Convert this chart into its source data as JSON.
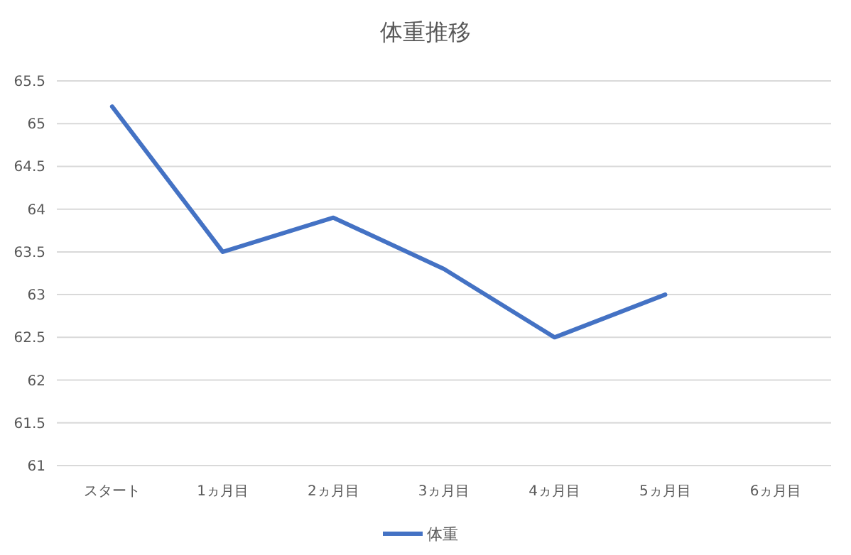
{
  "chart_data": {
    "type": "line",
    "title": "体重推移",
    "categories": [
      "スタート",
      "1ヵ月目",
      "2ヵ月目",
      "3ヵ月目",
      "4ヵ月目",
      "5ヵ月目",
      "6ヵ月目"
    ],
    "series": [
      {
        "name": "体重",
        "color": "#4472c4",
        "values": [
          65.2,
          63.5,
          63.9,
          63.3,
          62.5,
          63.0,
          null
        ]
      }
    ],
    "ylim": [
      61,
      65.5
    ],
    "yticks": [
      61,
      61.5,
      62,
      62.5,
      63,
      63.5,
      64,
      64.5,
      65,
      65.5
    ],
    "grid": "y",
    "legend": "bottom",
    "marker": "none",
    "line_style": "solid"
  }
}
